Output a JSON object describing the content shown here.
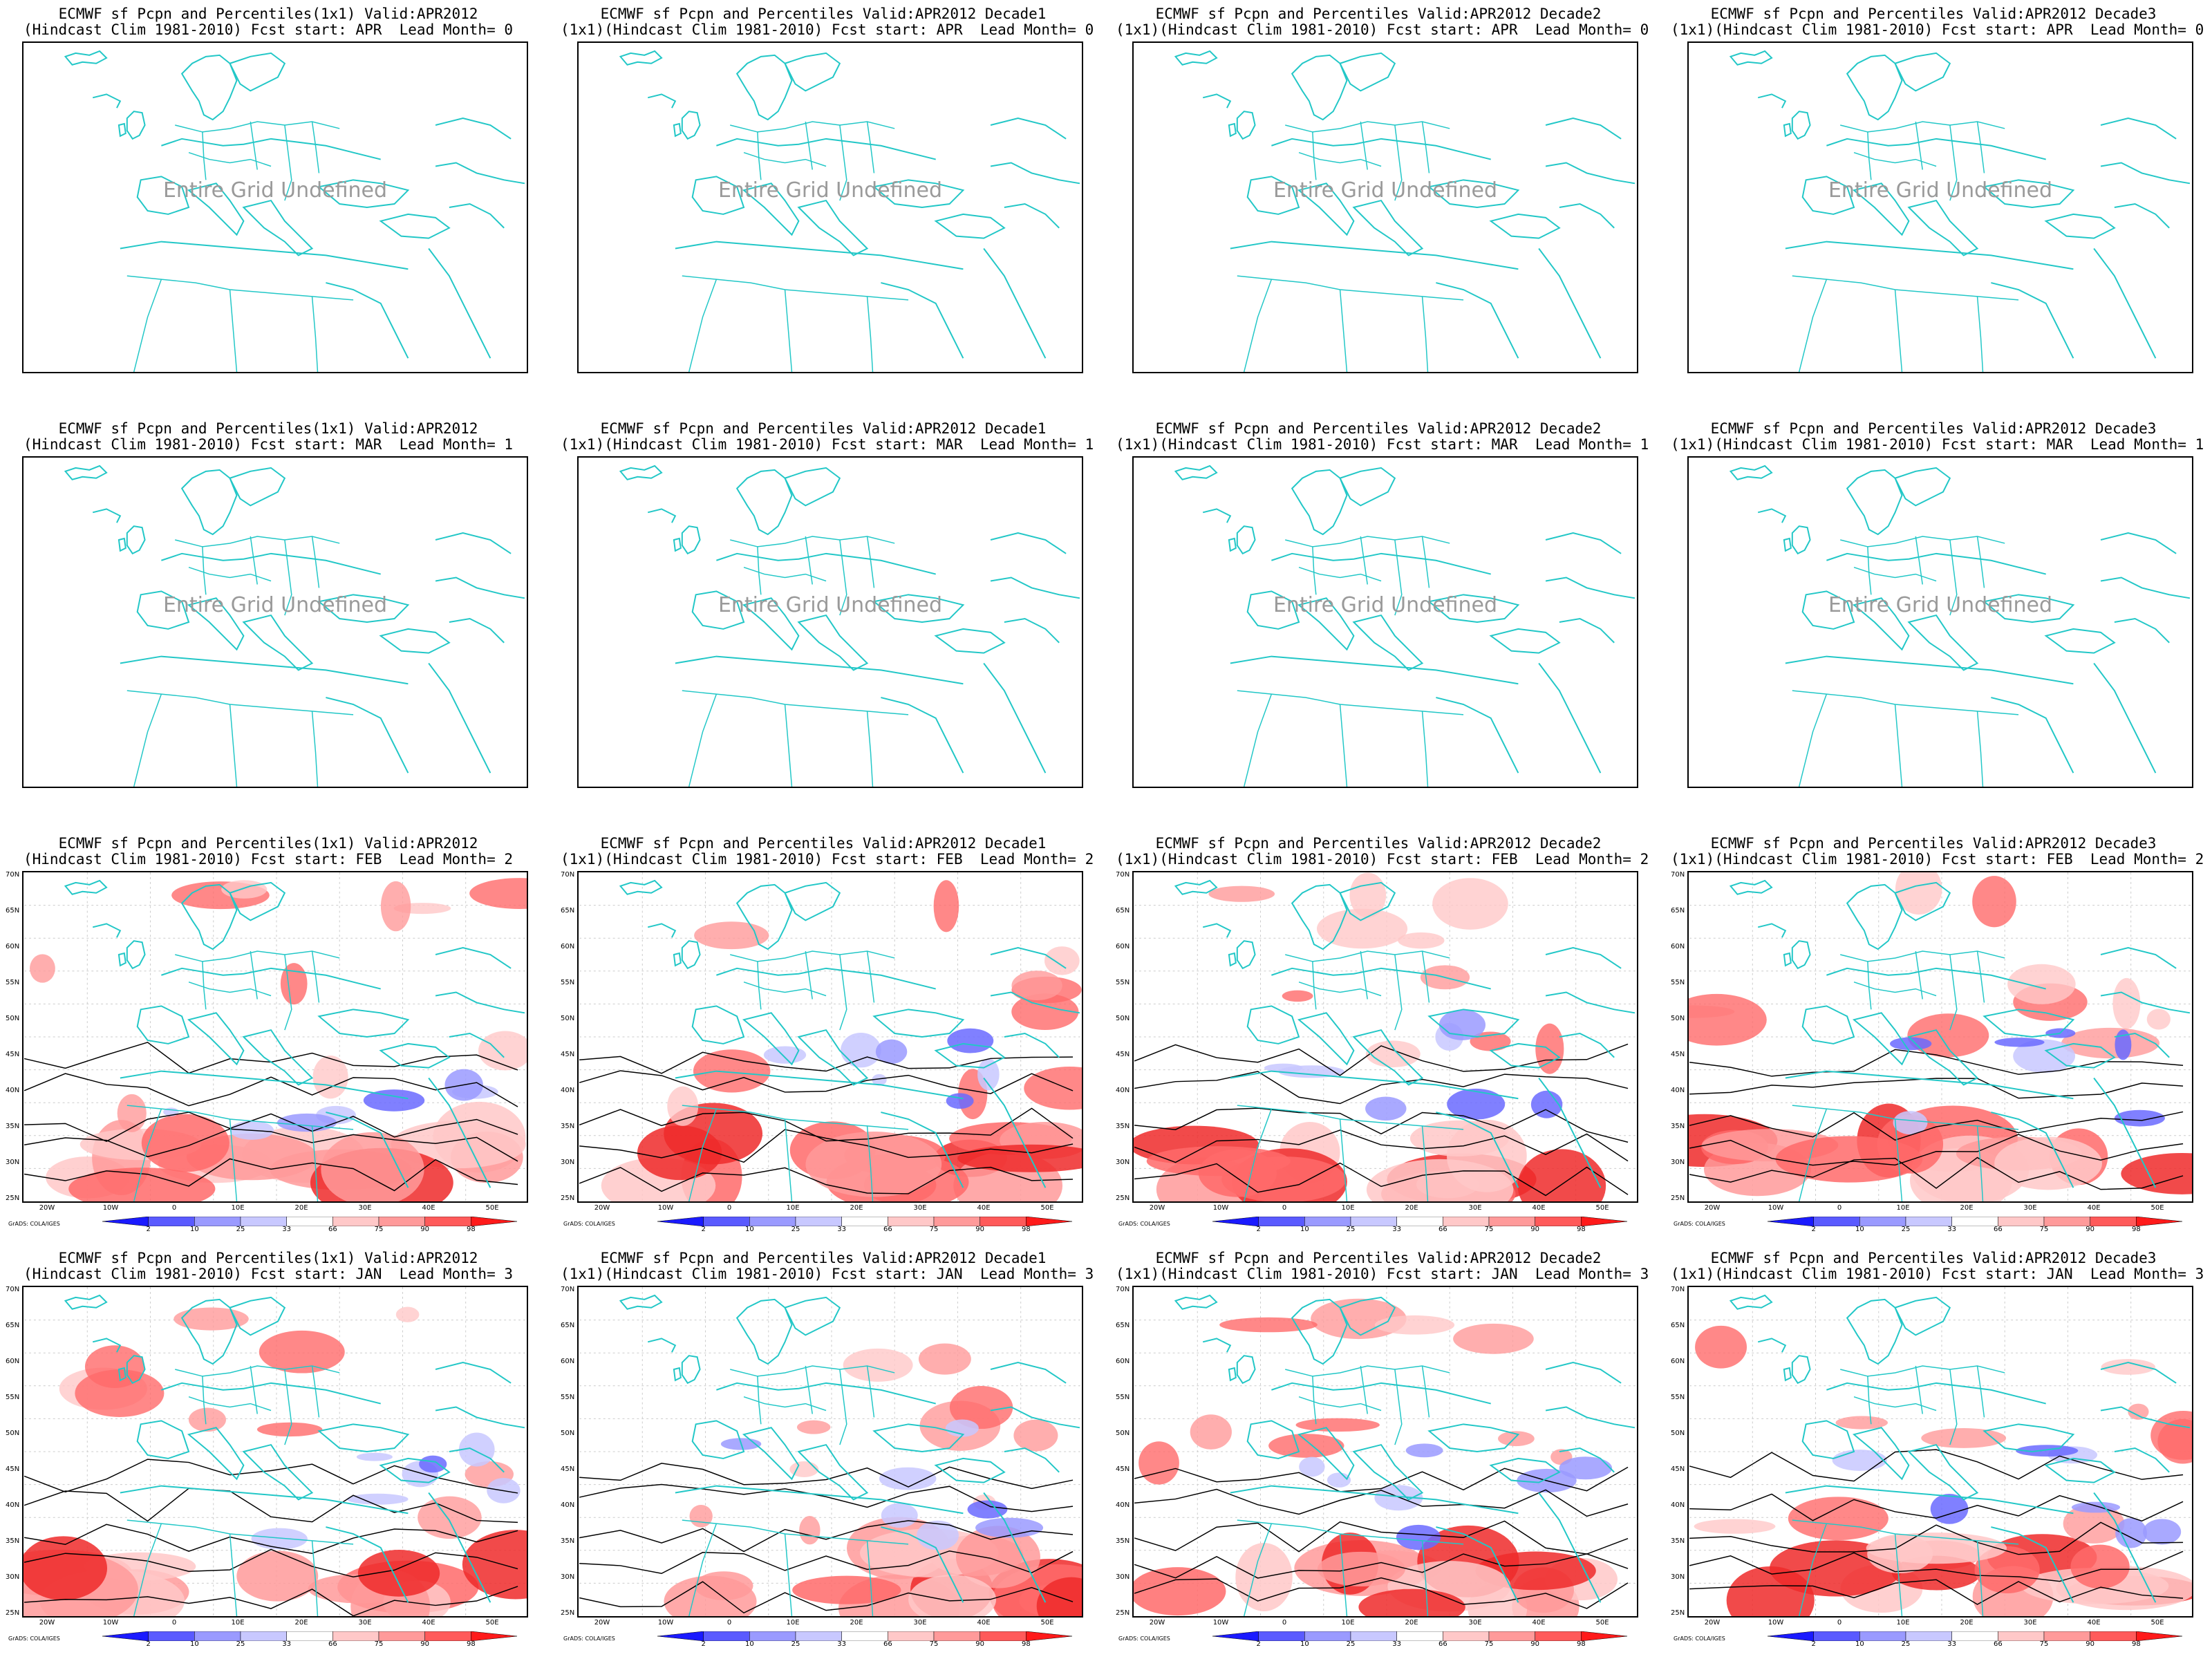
{
  "colors": {
    "coastline": "#22c7c7",
    "frame": "#000000",
    "contour": "#000000",
    "undefined_text": "#9a9a9a"
  },
  "rows": [
    {
      "lead": 0,
      "panels": [
        {
          "title1": "ECMWF sf Pcpn and Percentiles(1x1) Valid:APR2012",
          "title2": "(Hindcast Clim 1981-2010) Fcst start: APR  Lead Month= 0",
          "message": "Entire Grid Undefined"
        },
        {
          "title1": "ECMWF sf Pcpn and Percentiles Valid:APR2012 Decade1",
          "title2": "(1x1)(Hindcast Clim 1981-2010) Fcst start: APR  Lead Month= 0",
          "message": "Entire Grid Undefined"
        },
        {
          "title1": "ECMWF sf Pcpn and Percentiles Valid:APR2012 Decade2",
          "title2": "(1x1)(Hindcast Clim 1981-2010) Fcst start: APR  Lead Month= 0",
          "message": "Entire Grid Undefined"
        },
        {
          "title1": "ECMWF sf Pcpn and Percentiles Valid:APR2012 Decade3",
          "title2": "(1x1)(Hindcast Clim 1981-2010) Fcst start: APR  Lead Month= 0",
          "message": "Entire Grid Undefined"
        }
      ]
    },
    {
      "lead": 1,
      "panels": [
        {
          "title1": "ECMWF sf Pcpn and Percentiles(1x1) Valid:APR2012",
          "title2": "(Hindcast Clim 1981-2010) Fcst start: MAR  Lead Month= 1",
          "message": "Entire Grid Undefined"
        },
        {
          "title1": "ECMWF sf Pcpn and Percentiles Valid:APR2012 Decade1",
          "title2": "(1x1)(Hindcast Clim 1981-2010) Fcst start: MAR  Lead Month= 1",
          "message": "Entire Grid Undefined"
        },
        {
          "title1": "ECMWF sf Pcpn and Percentiles Valid:APR2012 Decade2",
          "title2": "(1x1)(Hindcast Clim 1981-2010) Fcst start: MAR  Lead Month= 1",
          "message": "Entire Grid Undefined"
        },
        {
          "title1": "ECMWF sf Pcpn and Percentiles Valid:APR2012 Decade3",
          "title2": "(1x1)(Hindcast Clim 1981-2010) Fcst start: MAR  Lead Month= 1",
          "message": "Entire Grid Undefined"
        }
      ]
    },
    {
      "lead": 2,
      "panels": [
        {
          "title1": "ECMWF sf Pcpn and Percentiles(1x1) Valid:APR2012",
          "title2": "(Hindcast Clim 1981-2010) Fcst start: FEB  Lead Month= 2"
        },
        {
          "title1": "ECMWF sf Pcpn and Percentiles Valid:APR2012 Decade1",
          "title2": "(1x1)(Hindcast Clim 1981-2010) Fcst start: FEB  Lead Month= 2"
        },
        {
          "title1": "ECMWF sf Pcpn and Percentiles Valid:APR2012 Decade2",
          "title2": "(1x1)(Hindcast Clim 1981-2010) Fcst start: FEB  Lead Month= 2"
        },
        {
          "title1": "ECMWF sf Pcpn and Percentiles Valid:APR2012 Decade3",
          "title2": "(1x1)(Hindcast Clim 1981-2010) Fcst start: FEB  Lead Month= 2"
        }
      ]
    },
    {
      "lead": 3,
      "panels": [
        {
          "title1": "ECMWF sf Pcpn and Percentiles(1x1) Valid:APR2012",
          "title2": "(Hindcast Clim 1981-2010) Fcst start: JAN  Lead Month= 3"
        },
        {
          "title1": "ECMWF sf Pcpn and Percentiles Valid:APR2012 Decade1",
          "title2": "(1x1)(Hindcast Clim 1981-2010) Fcst start: JAN  Lead Month= 3"
        },
        {
          "title1": "ECMWF sf Pcpn and Percentiles Valid:APR2012 Decade2",
          "title2": "(1x1)(Hindcast Clim 1981-2010) Fcst start: JAN  Lead Month= 3"
        },
        {
          "title1": "ECMWF sf Pcpn and Percentiles Valid:APR2012 Decade3",
          "title2": "(1x1)(Hindcast Clim 1981-2010) Fcst start: JAN  Lead Month= 3"
        }
      ]
    }
  ],
  "map_axes": {
    "lat_labels": [
      "70N",
      "65N",
      "60N",
      "55N",
      "50N",
      "45N",
      "40N",
      "35N",
      "30N",
      "25N"
    ],
    "lon_labels": [
      "20W",
      "10W",
      "0",
      "10E",
      "20E",
      "30E",
      "40E",
      "50E"
    ]
  },
  "colorbar": {
    "labels": [
      "2",
      "10",
      "25",
      "33",
      "66",
      "75",
      "90",
      "98"
    ],
    "colors": [
      "#1a1aff",
      "#5a5aff",
      "#9a9aff",
      "#c8c8ff",
      "#ffffff",
      "#ffc8c8",
      "#ff9a9a",
      "#ff5a5a",
      "#ff1a1a"
    ]
  },
  "credit": "GrADS: COLA/IGES"
}
